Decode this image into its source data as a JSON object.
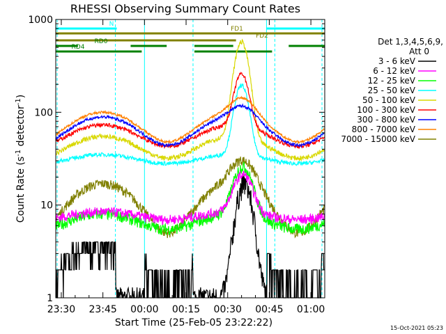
{
  "chart_data": {
    "type": "line",
    "title": "RHESSI Observing Summary Count Rates",
    "xlabel": "Start Time (25-Feb-05 23:22:22)",
    "ylabel_main": "Count Rate (s",
    "ylabel_sup1": "-1",
    "ylabel_mid": " detector",
    "ylabel_sup2": "-1",
    "ylabel_end": ")",
    "y_scale": "log",
    "ylim": [
      1,
      1000
    ],
    "xlim_minutes": [
      -32,
      65
    ],
    "x_ticks": [
      {
        "label": "23:30",
        "minute": -30
      },
      {
        "label": "23:45",
        "minute": -15
      },
      {
        "label": "00:00",
        "minute": 0
      },
      {
        "label": "00:15",
        "minute": 15
      },
      {
        "label": "00:30",
        "minute": 30
      },
      {
        "label": "00:45",
        "minute": 45
      },
      {
        "label": "01:00",
        "minute": 60
      }
    ],
    "y_ticks": [
      {
        "label": "1",
        "value": 1
      },
      {
        "label": "10",
        "value": 10
      },
      {
        "label": "100",
        "value": 100
      },
      {
        "label": "1000",
        "value": 1000
      }
    ],
    "legend_header_1": "Det 1,3,4,5,6,9,",
    "legend_header_2": "Att 0",
    "series": [
      {
        "name": "3 - 6 keV",
        "color": "#000000"
      },
      {
        "name": "6 - 12 keV",
        "color": "#ff00ff"
      },
      {
        "name": "12 - 25 keV",
        "color": "#00ff00"
      },
      {
        "name": "25 - 50 keV",
        "color": "#00ffff"
      },
      {
        "name": "50 - 100 keV",
        "color": "#d8d800"
      },
      {
        "name": "100 - 300 keV",
        "color": "#ff0000"
      },
      {
        "name": "300 - 800 keV",
        "color": "#0000ff"
      },
      {
        "name": "800 - 7000 keV",
        "color": "#ff8000"
      },
      {
        "name": "7000 - 15000 keV",
        "color": "#808000"
      }
    ],
    "flags": [
      {
        "label": "N",
        "color": "#00ffff",
        "segments": [
          [
            -32,
            -10
          ],
          [
            44,
            65
          ]
        ]
      },
      {
        "label": "FD1",
        "color": "#808000",
        "segments": [
          [
            -32,
            65
          ]
        ]
      },
      {
        "label": "FD2",
        "color": "#808000",
        "segments": [
          [
            -32,
            33
          ]
        ]
      },
      {
        "label": "RD0",
        "color": "#008000",
        "segments": [
          [
            -32,
            -24
          ],
          [
            -5,
            8
          ],
          [
            18,
            32
          ],
          [
            52,
            65
          ]
        ]
      },
      {
        "label": "RD4",
        "color": "#008000",
        "segments": [
          [
            -32,
            -1
          ],
          [
            18,
            46
          ]
        ]
      }
    ],
    "night_boundaries_minutes": [
      -31.5,
      -10.5,
      0,
      17.5,
      44,
      47,
      64
    ]
  },
  "footer": {
    "timestamp": "15-Oct-2021 05:23"
  }
}
